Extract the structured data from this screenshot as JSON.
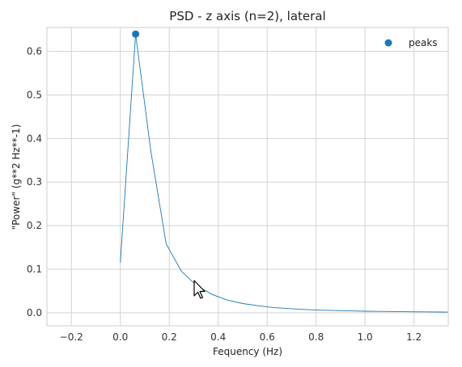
{
  "chart_data": {
    "type": "line",
    "title": "PSD - z axis (n=2), lateral",
    "xlabel": "Fequency (Hz)",
    "ylabel": "\"Power\" (g**2 Hz**-1)",
    "xlim": [
      -0.3,
      1.34
    ],
    "ylim": [
      -0.03,
      0.655
    ],
    "x_ticks": [
      -0.2,
      0.0,
      0.2,
      0.4,
      0.6,
      0.8,
      1.0,
      1.2
    ],
    "x_tick_labels": [
      "−0.2",
      "0.0",
      "0.2",
      "0.4",
      "0.6",
      "0.8",
      "1.0",
      "1.2"
    ],
    "y_ticks": [
      0.0,
      0.1,
      0.2,
      0.3,
      0.4,
      0.5,
      0.6
    ],
    "y_tick_labels": [
      "0.0",
      "0.1",
      "0.2",
      "0.3",
      "0.4",
      "0.5",
      "0.6"
    ],
    "grid": true,
    "legend_position": "top-right",
    "series": [
      {
        "type": "line",
        "color": "#1f77b4",
        "x": [
          0.0,
          0.0625,
          0.125,
          0.1875,
          0.25,
          0.3125,
          0.375,
          0.4375,
          0.5,
          0.5625,
          0.625,
          0.6875,
          0.75,
          0.8125,
          0.875,
          0.9375,
          1.0,
          1.0625,
          1.125,
          1.1875,
          1.25,
          1.3125,
          1.375
        ],
        "y": [
          0.115,
          0.64,
          0.37,
          0.158,
          0.095,
          0.062,
          0.042,
          0.029,
          0.021,
          0.016,
          0.012,
          0.0095,
          0.0075,
          0.006,
          0.005,
          0.0042,
          0.0035,
          0.003,
          0.0026,
          0.0022,
          0.0019,
          0.0016,
          0.0014
        ]
      },
      {
        "name": "peaks",
        "type": "scatter",
        "color": "#1f77b4",
        "x": [
          0.0625
        ],
        "y": [
          0.64
        ]
      }
    ]
  }
}
